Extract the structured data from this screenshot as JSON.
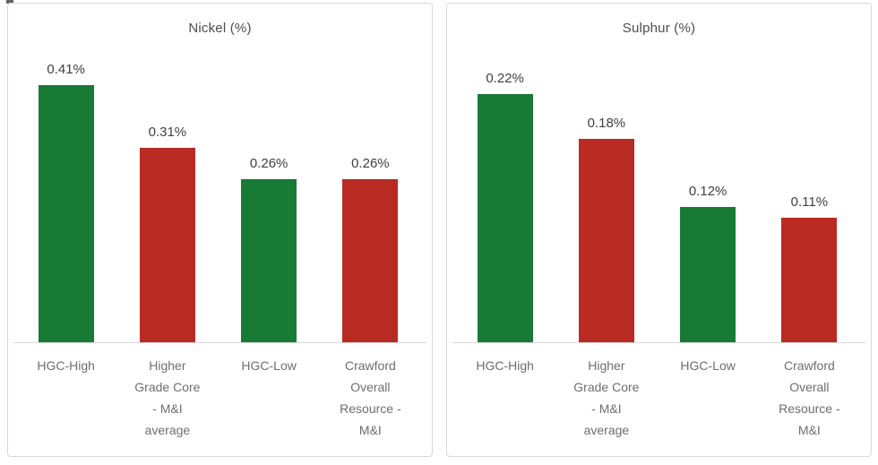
{
  "page": {
    "background": "#ffffff"
  },
  "colors": {
    "green_bar": "#177b35",
    "red_bar": "#b92a22",
    "panel_border": "#d9d9d9",
    "axis_line": "#d9d9d9",
    "title_text": "#4d4d4d",
    "value_text": "#404040",
    "category_text": "#6e6e6e"
  },
  "chart_data": [
    {
      "type": "bar",
      "title": "Nickel (%)",
      "categories": [
        "HGC-High",
        "Higher Grade Core - M&I average",
        "HGC-Low",
        "Crawford Overall Resource - M&I"
      ],
      "categories_wrapped": [
        "HGC-High",
        "Higher\nGrade Core\n- M&I\naverage",
        "HGC-Low",
        "Crawford\nOverall\nResource -\nM&I"
      ],
      "values": [
        0.41,
        0.31,
        0.26,
        0.26
      ],
      "value_labels": [
        "0.41%",
        "0.31%",
        "0.26%",
        "0.26%"
      ],
      "bar_colors": [
        "#177b35",
        "#b92a22",
        "#177b35",
        "#b92a22"
      ],
      "xlabel": "",
      "ylabel": "",
      "ylim": [
        0,
        0.45
      ],
      "grid": false,
      "legend": false,
      "data_label_position": "outside-end"
    },
    {
      "type": "bar",
      "title": "Sulphur (%)",
      "categories": [
        "HGC-High",
        "Higher Grade Core - M&I average",
        "HGC-Low",
        "Crawford Overall Resource - M&I"
      ],
      "categories_wrapped": [
        "HGC-High",
        "Higher\nGrade Core\n- M&I\naverage",
        "HGC-Low",
        "Crawford\nOverall\nResource -\nM&I"
      ],
      "values": [
        0.22,
        0.18,
        0.12,
        0.11
      ],
      "value_labels": [
        "0.22%",
        "0.18%",
        "0.12%",
        "0.11%"
      ],
      "bar_colors": [
        "#177b35",
        "#b92a22",
        "#177b35",
        "#b92a22"
      ],
      "xlabel": "",
      "ylabel": "",
      "ylim": [
        0,
        0.25
      ],
      "grid": false,
      "legend": false,
      "data_label_position": "outside-end"
    }
  ]
}
